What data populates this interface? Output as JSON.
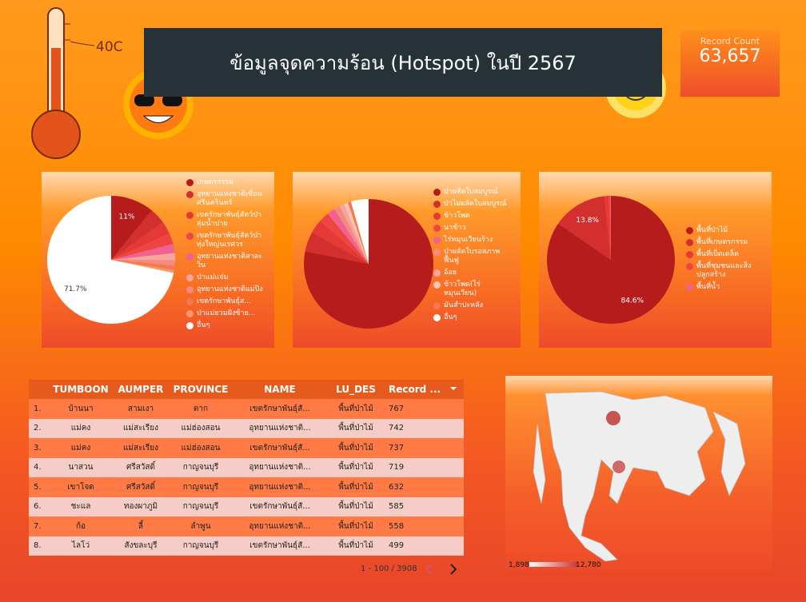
{
  "header": {
    "title": "ข้อมูลจุดความร้อน (Hotspot) ในปี 2567",
    "thermometer_label": "40C"
  },
  "scorecard": {
    "label": "Record Count",
    "value": "63,657"
  },
  "chart_data": [
    {
      "type": "pie",
      "categories": [
        "เกษตรกรรม",
        "อุทยานแห่งชาติเขื่อนศรีนครินทร์",
        "เขตรักษาพันธุ์สัตว์ป่าลุ่มน้ำปาย",
        "เขตรักษาพันธุ์สัตว์ป่าทุ่งใหญ่นเรศวร",
        "อุทยานแห่งชาติสาละวิน",
        "ป่าแม่แจ่ม",
        "อุทยานแห่งชาติแม่ปิง",
        "เขตรักษาพันธุ์ส...",
        "ป่าแม่ยวมฝั่งซ้าย...",
        "อื่นๆ"
      ],
      "values": [
        11,
        4,
        3.3,
        2.7,
        2.3,
        1.8,
        1.4,
        1.1,
        0.7,
        71.7
      ],
      "value_labels": [
        "11%",
        null,
        null,
        null,
        null,
        null,
        null,
        null,
        null,
        "71.7%"
      ],
      "colors": [
        "#b71c1c",
        "#d32f2f",
        "#e53935",
        "#ef4444",
        "#f06292",
        "#f8a5a0",
        "#f48a80",
        "#f4794f",
        "#f79a6b",
        "#ffffff"
      ]
    },
    {
      "type": "pie",
      "categories": [
        "ป่าผลัดใบสมบูรณ์",
        "ป่าไม่ผลัดใบสมบูรณ์",
        "ข้าวโพด",
        "นาข้าว",
        "ไร่หมุนเวียนร้าง",
        "ป่าผลัดใบรอสภาพฟื้นฟู",
        "อ้อย",
        "ข้าวโพด(ไร่หมุนเวียน)",
        "มันสำปะหลัง",
        "อื่นๆ"
      ],
      "values": [
        78.1,
        5,
        3.5,
        2.5,
        2,
        1.5,
        1.2,
        1,
        0.8,
        4.4
      ],
      "value_labels": [
        null,
        null,
        null,
        null,
        null,
        null,
        null,
        null,
        null,
        null
      ],
      "colors": [
        "#b71c1c",
        "#d32f2f",
        "#e53935",
        "#ef4444",
        "#f06292",
        "#f48a80",
        "#f8a5a0",
        "#fbc4b4",
        "#f4794f",
        "#ffffff"
      ]
    },
    {
      "type": "pie",
      "categories": [
        "พื้นที่ป่าไม้",
        "พื้นที่เกษตรกรรม",
        "พื้นที่เบ็ดเตล็ด",
        "พื้นที่ชุมชนและสิ่งปลูกสร้าง",
        "พื้นที่น้ำ"
      ],
      "values": [
        84.6,
        13.8,
        1,
        0.4,
        0.2
      ],
      "value_labels": [
        "84.6%",
        "13.8%",
        null,
        null,
        null
      ],
      "colors": [
        "#b71c1c",
        "#d32f2f",
        "#e53935",
        "#ef4444",
        "#f06292"
      ]
    }
  ],
  "table": {
    "columns": [
      "TUMBOON",
      "AUMPER",
      "PROVINCE",
      "NAME",
      "LU_DES",
      "Record ..."
    ],
    "rows": [
      [
        "1.",
        "บ้านนา",
        "สามเงา",
        "ตาก",
        "เขตรักษาพันธุ์สั...",
        "พื้นที่ป่าไม้",
        767
      ],
      [
        "2.",
        "แม่คง",
        "แม่สะเรียง",
        "แม่ฮ่องสอน",
        "อุทยานแห่งชาติ...",
        "พื้นที่ป่าไม้",
        742
      ],
      [
        "3.",
        "แม่คง",
        "แม่สะเรียง",
        "แม่ฮ่องสอน",
        "เขตรักษาพันธุ์สั...",
        "พื้นที่ป่าไม้",
        737
      ],
      [
        "4.",
        "นาสวน",
        "ศรีสวัสดิ์",
        "กาญจนบุรี",
        "อุทยานแห่งชาติ...",
        "พื้นที่ป่าไม้",
        719
      ],
      [
        "5.",
        "เขาโจด",
        "ศรีสวัสดิ์",
        "กาญจนบุรี",
        "อุทยานแห่งชาติ...",
        "พื้นที่ป่าไม้",
        632
      ],
      [
        "6.",
        "ชะแล",
        "ทองผาภูมิ",
        "กาญจนบุรี",
        "เขตรักษาพันธุ์สั...",
        "พื้นที่ป่าไม้",
        585
      ],
      [
        "7.",
        "ก้อ",
        "ลี้",
        "ลำพูน",
        "อุทยานแห่งชาติ...",
        "พื้นที่ป่าไม้",
        558
      ],
      [
        "8.",
        "ไลโว่",
        "สังขละบุรี",
        "กาญจนบุรี",
        "เขตรักษาพันธุ์สั...",
        "พื้นที่ป่าไม้",
        499
      ]
    ],
    "pagination": "1 - 100 / 3908"
  },
  "map": {
    "legend_min": "1,898",
    "legend_max": "12,780"
  }
}
